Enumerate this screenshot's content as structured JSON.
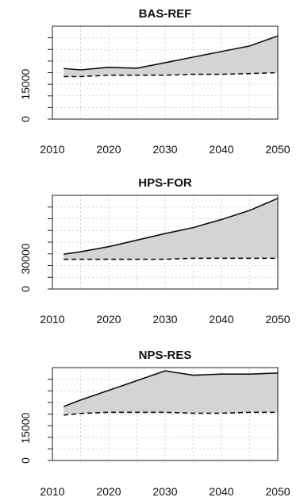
{
  "chart_data": [
    {
      "type": "area",
      "title": "BAS-REF",
      "x": [
        2012,
        2015,
        2020,
        2025,
        2030,
        2035,
        2040,
        2045,
        2050
      ],
      "series": [
        {
          "values": [
            21800,
            21200,
            22300,
            21900,
            24300,
            26700,
            29100,
            31500,
            35800
          ]
        },
        {
          "values": [
            18300,
            18300,
            18900,
            18900,
            18900,
            19300,
            19300,
            19600,
            20000
          ]
        }
      ],
      "xlim": [
        2010,
        2050
      ],
      "ylim": [
        0,
        40000
      ],
      "xticks": [
        "2010",
        "2020",
        "2030",
        "2040",
        "2050"
      ],
      "yticks": [
        "0",
        "15000"
      ],
      "grid": true
    },
    {
      "type": "area",
      "title": "HPS-FOR",
      "x": [
        2012,
        2015,
        2020,
        2025,
        2030,
        2035,
        2040,
        2045,
        2050
      ],
      "series": [
        {
          "values": [
            34500,
            37000,
            42000,
            48500,
            55000,
            61000,
            69000,
            78000,
            90000
          ]
        },
        {
          "values": [
            29500,
            29500,
            29500,
            29500,
            29500,
            30500,
            30500,
            30500,
            30500
          ]
        }
      ],
      "xlim": [
        2010,
        2050
      ],
      "ylim": [
        0,
        93000
      ],
      "xticks": [
        "2010",
        "2020",
        "2030",
        "2040",
        "2050"
      ],
      "yticks": [
        "0",
        "30000"
      ],
      "grid": true
    },
    {
      "type": "area",
      "title": "NPS-RES",
      "x": [
        2012,
        2015,
        2020,
        2025,
        2030,
        2035,
        2040,
        2045,
        2050
      ],
      "series": [
        {
          "values": [
            25000,
            28000,
            32500,
            37000,
            41500,
            39500,
            40000,
            40000,
            40500
          ]
        },
        {
          "values": [
            21000,
            21800,
            22300,
            22300,
            22300,
            21900,
            21900,
            22300,
            22300
          ]
        }
      ],
      "xlim": [
        2010,
        2050
      ],
      "ylim": [
        0,
        43000
      ],
      "xticks": [
        "2010",
        "2020",
        "2030",
        "2040",
        "2050"
      ],
      "yticks": [
        "0",
        "15000"
      ],
      "grid": true
    }
  ]
}
